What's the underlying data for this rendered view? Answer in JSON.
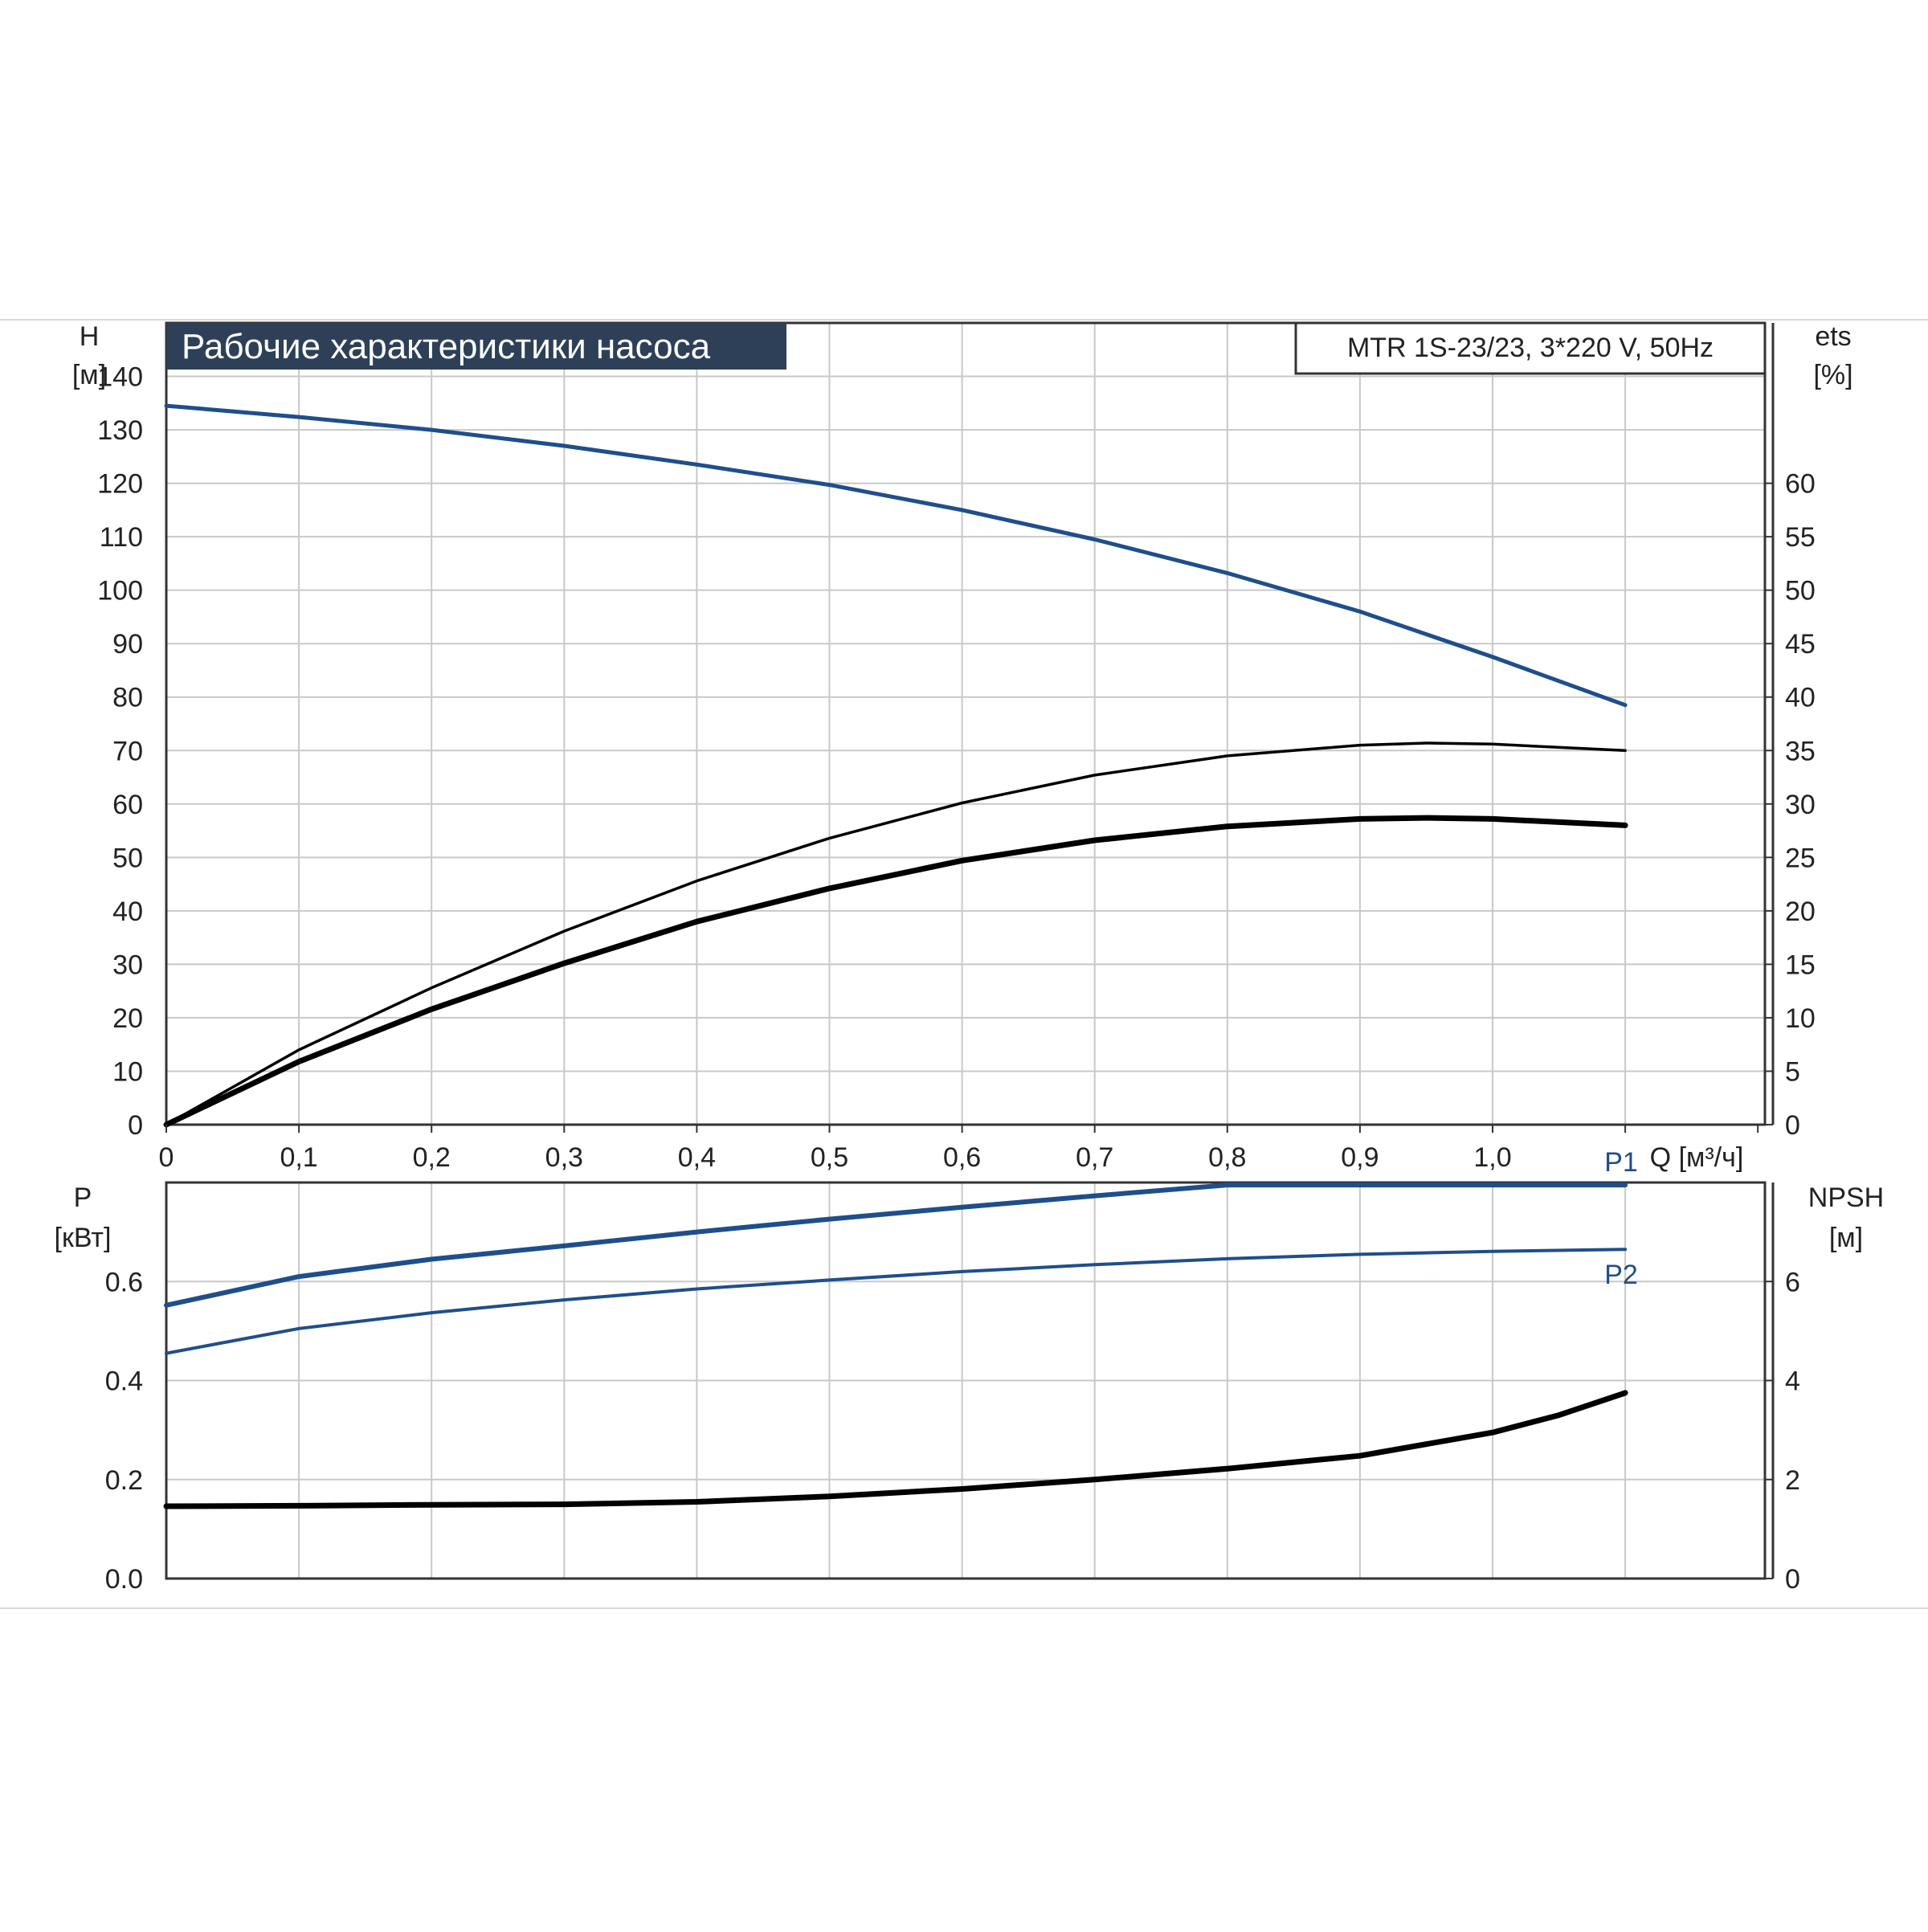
{
  "chart_data": [
    {
      "type": "line",
      "title": "Рабочие характеристики насоса",
      "model_label": "MTR 1S-23/23, 3*220 V, 50Hz",
      "x_ticks": [
        "0",
        "0,1",
        "0,2",
        "0,3",
        "0,4",
        "0,5",
        "0,6",
        "0,7",
        "0,8",
        "0,9",
        "1,0"
      ],
      "xlim": [
        0,
        1.2
      ],
      "xlabel": "Q [м³/ч]",
      "ylabel_left": [
        "H",
        "[м]"
      ],
      "ylim_left": [
        0,
        150
      ],
      "y_ticks_left": [
        "0",
        "10",
        "20",
        "30",
        "40",
        "50",
        "60",
        "70",
        "80",
        "90",
        "100",
        "110",
        "120",
        "130",
        "140"
      ],
      "ylabel_right": [
        "ets",
        "[%]"
      ],
      "ylim_right": [
        0,
        75
      ],
      "y_ticks_right": [
        "0",
        "5",
        "10",
        "15",
        "20",
        "25",
        "30",
        "35",
        "40",
        "45",
        "50",
        "55",
        "60"
      ],
      "grid": true,
      "series": [
        {
          "axis": "left",
          "color": "#1f4e8c",
          "x": [
            0,
            0.1,
            0.2,
            0.3,
            0.4,
            0.5,
            0.6,
            0.7,
            0.8,
            0.9,
            1.0,
            1.1
          ],
          "y": [
            134.5,
            132.4,
            130.0,
            127.0,
            123.5,
            119.7,
            115.0,
            109.5,
            103.2,
            96.0,
            87.5,
            78.5
          ]
        },
        {
          "axis": "right",
          "color": "#000000",
          "x": [
            0,
            0.1,
            0.2,
            0.3,
            0.4,
            0.5,
            0.6,
            0.7,
            0.8,
            0.9,
            0.95,
            1.0,
            1.1
          ],
          "y": [
            0,
            7.0,
            12.8,
            18.1,
            22.8,
            26.8,
            30.1,
            32.7,
            34.5,
            35.5,
            35.7,
            35.6,
            35.0
          ]
        },
        {
          "axis": "right",
          "color": "#000000",
          "x": [
            0,
            0.1,
            0.2,
            0.3,
            0.4,
            0.5,
            0.6,
            0.7,
            0.8,
            0.9,
            0.95,
            1.0,
            1.1
          ],
          "y": [
            0,
            5.9,
            10.8,
            15.1,
            19.0,
            22.1,
            24.7,
            26.6,
            27.9,
            28.6,
            28.7,
            28.6,
            28.0
          ]
        }
      ]
    },
    {
      "type": "line",
      "x_ticks": [],
      "xlim": [
        0,
        1.2
      ],
      "ylabel_left": [
        "P",
        "[кВт]"
      ],
      "ylim_left": [
        0,
        0.8
      ],
      "y_ticks_left": [
        "0.0",
        "0.2",
        "0.4",
        "0.6"
      ],
      "ylabel_right": [
        "NPSH",
        "[м]"
      ],
      "ylim_right": [
        0,
        8
      ],
      "y_ticks_right": [
        "0",
        "2",
        "4",
        "6"
      ],
      "grid": true,
      "series": [
        {
          "name": "P1",
          "axis": "left",
          "color": "#1f4e8c",
          "x": [
            0,
            0.1,
            0.2,
            0.3,
            0.4,
            0.5,
            0.6,
            0.7,
            0.8,
            0.9,
            1.0,
            1.1
          ],
          "y": [
            0.552,
            0.61,
            0.645,
            0.672,
            0.7,
            0.726,
            0.75,
            0.773,
            0.795,
            0.795,
            0.795,
            0.795
          ]
        },
        {
          "name": "P2",
          "axis": "left",
          "color": "#1f4e8c",
          "x": [
            0,
            0.1,
            0.2,
            0.3,
            0.4,
            0.5,
            0.6,
            0.7,
            0.8,
            0.9,
            1.0,
            1.1
          ],
          "y": [
            0.455,
            0.505,
            0.537,
            0.563,
            0.585,
            0.603,
            0.62,
            0.634,
            0.646,
            0.655,
            0.661,
            0.665
          ]
        },
        {
          "axis": "right",
          "color": "#000000",
          "x": [
            0,
            0.1,
            0.2,
            0.3,
            0.4,
            0.5,
            0.6,
            0.7,
            0.8,
            0.9,
            1.0,
            1.05,
            1.1
          ],
          "y": [
            1.46,
            1.47,
            1.49,
            1.5,
            1.55,
            1.66,
            1.81,
            2.0,
            2.22,
            2.48,
            2.95,
            3.3,
            3.75
          ]
        }
      ]
    }
  ]
}
